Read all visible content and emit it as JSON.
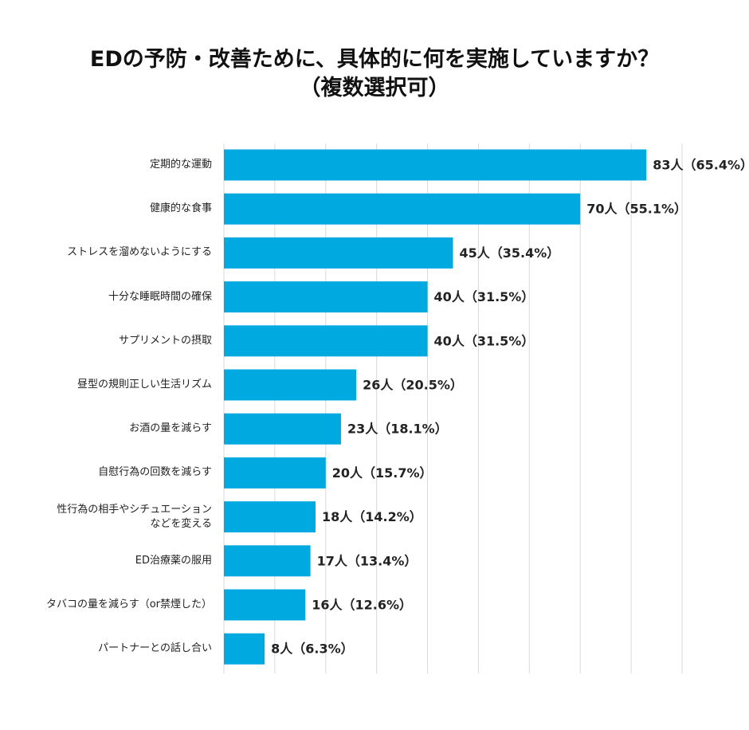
{
  "chart_data": {
    "type": "barh",
    "title": "EDの予防・改善ために、具体的に何を実施していますか？",
    "subtitle": "（複数選択可）",
    "categories": [
      "定期的な運動",
      "健康的な食事",
      "ストレスを溜めないようにする",
      "十分な睡眠時間の確保",
      "サプリメントの摂取",
      "昼型の規則正しい生活リズム",
      "お酒の量を減らす",
      "自慰行為の回数を減らす",
      "性行為の相手やシチュエーション\nなどを変える",
      "ED治療薬の服用",
      "タバコの量を減らす（or禁煙した）",
      "パートナーとの話し合い"
    ],
    "values": [
      83,
      70,
      45,
      40,
      40,
      26,
      23,
      20,
      18,
      17,
      16,
      8
    ],
    "value_labels": [
      "83人（65.4%）",
      "70人（55.1%）",
      "45人（35.4%）",
      "40人（31.5%）",
      "40人（31.5%）",
      "26人（20.5%）",
      "23人（18.1%）",
      "20人（15.7%）",
      "18人（14.2%）",
      "17人（13.4%）",
      "16人（12.6%）",
      "8人（6.3%）"
    ],
    "color": "#00a9e0",
    "xlim": [
      0,
      90
    ],
    "xticks": [
      0,
      10,
      20,
      30,
      40,
      50,
      60,
      70,
      80,
      90
    ],
    "grid": true
  }
}
